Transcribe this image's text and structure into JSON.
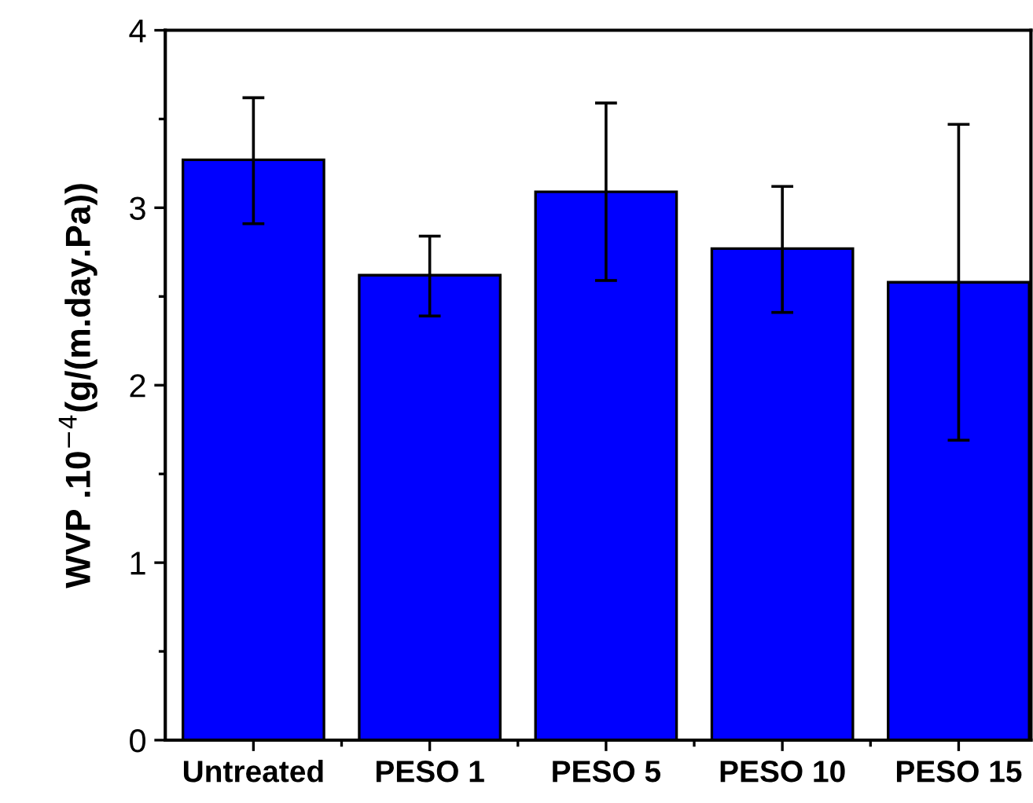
{
  "chart_data": {
    "type": "bar",
    "ylabel": "WVP .10$^{−4}$(g/(m.day.Pa))",
    "categories": [
      "Untreated",
      "PESO 1",
      "PESO 5",
      "PESO 10",
      "PESO 15"
    ],
    "values": [
      3.27,
      2.62,
      3.09,
      2.77,
      2.58
    ],
    "color": "#0000ff",
    "errors": [
      [
        2.91,
        3.62
      ],
      [
        2.39,
        2.84
      ],
      [
        2.59,
        3.59
      ],
      [
        2.41,
        3.12
      ],
      [
        1.69,
        3.47
      ]
    ],
    "ylim": [
      0,
      4
    ],
    "yticks": [
      0,
      1,
      2,
      3,
      4
    ],
    "grid": false
  }
}
